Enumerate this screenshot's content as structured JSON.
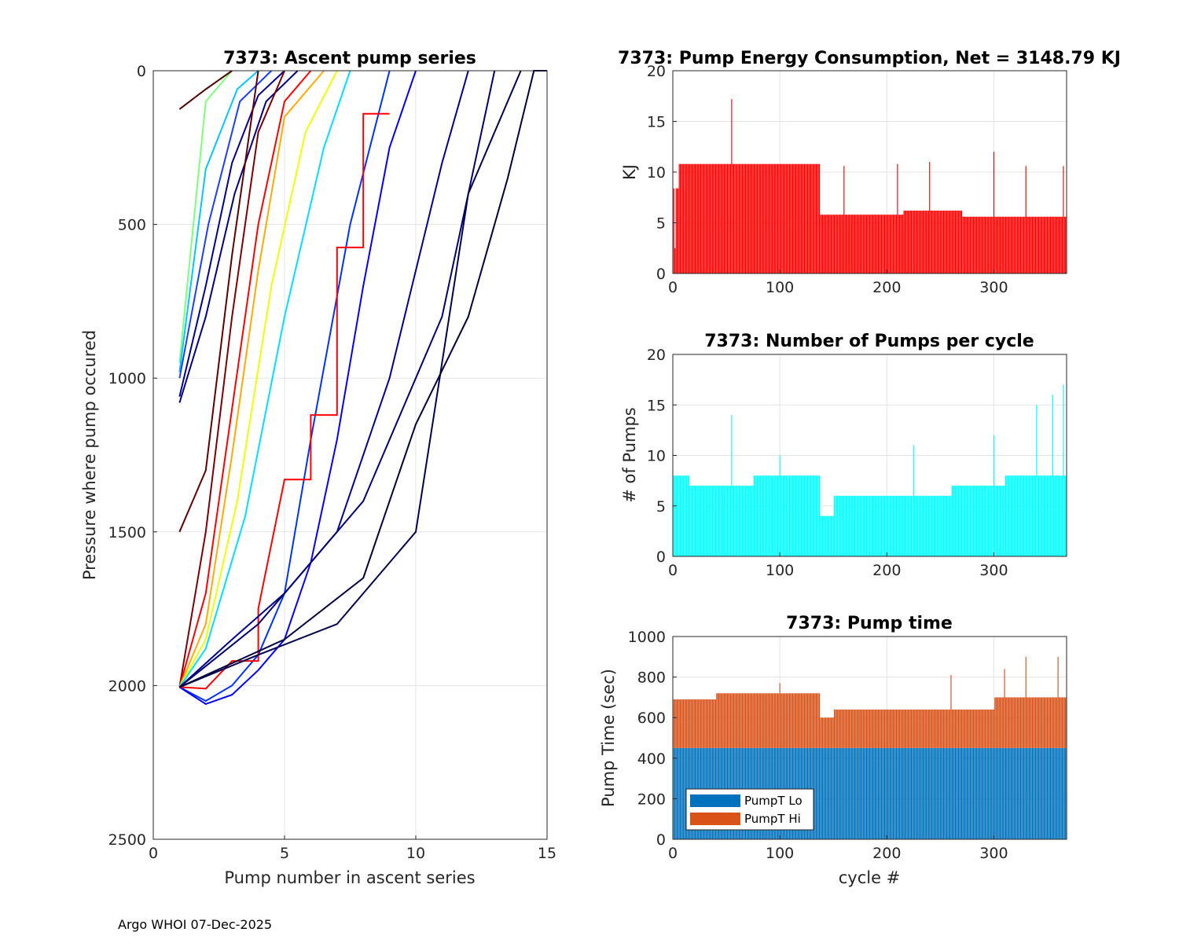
{
  "footer": "Argo WHOI 07-Dec-2025",
  "chart_data": [
    {
      "id": "ascent",
      "type": "line",
      "title": "7373: Ascent pump series",
      "xlabel": "Pump number in ascent series",
      "ylabel": "Pressure where pump occured",
      "xlim": [
        0,
        15
      ],
      "ylim": [
        0,
        2500
      ],
      "y_reversed": true,
      "xticks": [
        0,
        5,
        10,
        15
      ],
      "yticks": [
        0,
        500,
        1000,
        1500,
        2000,
        2500
      ],
      "grid": true,
      "colormap": "jet",
      "series": [
        {
          "name": "shallow-start-early",
          "color": "#7cff79",
          "x": [
            1,
            2,
            3
          ],
          "y": [
            950,
            100,
            0
          ]
        },
        {
          "name": "shallow-start-mid",
          "color": "#00c8ff",
          "x": [
            1,
            2,
            3.2,
            4
          ],
          "y": [
            980,
            320,
            60,
            0
          ]
        },
        {
          "name": "shallow-start-late",
          "color": "#1c3cff",
          "x": [
            1,
            2.1,
            3.3,
            4.5
          ],
          "y": [
            1000,
            500,
            100,
            0
          ]
        },
        {
          "name": "shallow-start-navy",
          "color": "#00008f",
          "x": [
            1,
            2,
            3,
            4,
            5
          ],
          "y": [
            1060,
            700,
            300,
            80,
            0
          ]
        },
        {
          "name": "shallow-start-dark",
          "color": "#000080",
          "x": [
            1,
            2,
            3.1,
            4.3,
            5.5
          ],
          "y": [
            1080,
            800,
            400,
            100,
            0
          ]
        },
        {
          "name": "top-start-darkred",
          "color": "#500000",
          "x": [
            1,
            2,
            3
          ],
          "y": [
            125,
            60,
            0
          ]
        },
        {
          "name": "mid-start-darkred",
          "color": "#600000",
          "x": [
            1,
            2,
            3,
            4
          ],
          "y": [
            1500,
            1300,
            600,
            0
          ]
        },
        {
          "name": "deep-darkred",
          "color": "#800000",
          "x": [
            1,
            2,
            3,
            4,
            5
          ],
          "y": [
            2005,
            1500,
            800,
            200,
            0
          ]
        },
        {
          "name": "deep-red",
          "color": "#ff0000",
          "x": [
            1,
            2,
            3,
            4,
            5,
            6
          ],
          "y": [
            2005,
            1700,
            1100,
            500,
            100,
            0
          ]
        },
        {
          "name": "deep-orange",
          "color": "#ffaa00",
          "x": [
            1,
            2,
            3,
            4,
            5,
            6.5
          ],
          "y": [
            2005,
            1800,
            1250,
            650,
            150,
            0
          ]
        },
        {
          "name": "deep-yellow",
          "color": "#eeff00",
          "x": [
            1,
            2,
            3.2,
            4.5,
            5.8,
            7
          ],
          "y": [
            2005,
            1850,
            1400,
            700,
            200,
            0
          ]
        },
        {
          "name": "deep-cyan",
          "color": "#00e0ff",
          "x": [
            1,
            2,
            3.5,
            5,
            6.5,
            7.5
          ],
          "y": [
            2005,
            1880,
            1450,
            800,
            250,
            0
          ]
        },
        {
          "name": "deep-blue-1",
          "color": "#0032ff",
          "x": [
            1,
            2,
            3,
            4,
            5,
            6,
            7.5,
            9
          ],
          "y": [
            2005,
            2050,
            2000,
            1900,
            1700,
            1200,
            500,
            0
          ]
        },
        {
          "name": "deep-blue-2",
          "color": "#0000ff",
          "x": [
            1,
            2,
            3,
            4,
            5,
            6,
            7,
            8,
            9,
            10
          ],
          "y": [
            2005,
            2060,
            2030,
            1950,
            1850,
            1600,
            1200,
            700,
            250,
            0
          ]
        },
        {
          "name": "red-step",
          "color": "#ff0000",
          "x": [
            1,
            2,
            3,
            4,
            4,
            5,
            6,
            6,
            7,
            7,
            8,
            8,
            9
          ],
          "y": [
            2005,
            2010,
            1920,
            1920,
            1750,
            1330,
            1330,
            1120,
            1120,
            575,
            575,
            140,
            140
          ]
        },
        {
          "name": "deep-navy-1",
          "color": "#000090",
          "x": [
            1,
            3,
            5,
            7,
            9,
            11,
            12
          ],
          "y": [
            2005,
            1850,
            1700,
            1500,
            1000,
            300,
            0
          ]
        },
        {
          "name": "deep-navy-2",
          "color": "#000070",
          "x": [
            1,
            4,
            6,
            8,
            10,
            11,
            13
          ],
          "y": [
            2005,
            1800,
            1600,
            1400,
            1000,
            800,
            0
          ]
        },
        {
          "name": "deep-navy-3",
          "color": "#000050",
          "x": [
            1,
            4,
            7,
            10,
            12,
            14
          ],
          "y": [
            2005,
            1900,
            1800,
            1500,
            400,
            0
          ]
        },
        {
          "name": "deep-navy-4",
          "color": "#00003f",
          "x": [
            1,
            5,
            8,
            10,
            12,
            13.5,
            14.5,
            15
          ],
          "y": [
            2005,
            1850,
            1650,
            1150,
            800,
            350,
            0,
            0
          ]
        }
      ]
    },
    {
      "id": "energy",
      "type": "bar",
      "title": "7373: Pump Energy Consumption,  Net = 3148.79 KJ",
      "xlabel": "",
      "ylabel": "KJ",
      "xlim": [
        0,
        368
      ],
      "ylim": [
        0,
        20
      ],
      "xticks": [
        0,
        100,
        200,
        300
      ],
      "yticks": [
        0,
        5,
        10,
        15,
        20
      ],
      "grid": true,
      "bar_color": "#ff0000",
      "segments": [
        {
          "from": 1,
          "to": 5,
          "value": 8.4
        },
        {
          "from": 6,
          "to": 137,
          "value": 10.8
        },
        {
          "from": 138,
          "to": 215,
          "value": 5.8
        },
        {
          "from": 216,
          "to": 270,
          "value": 6.2
        },
        {
          "from": 271,
          "to": 368,
          "value": 5.6
        }
      ],
      "spikes": [
        {
          "cycle": 2,
          "value": 2.5
        },
        {
          "cycle": 55,
          "value": 17.2
        },
        {
          "cycle": 160,
          "value": 10.6
        },
        {
          "cycle": 210,
          "value": 10.8
        },
        {
          "cycle": 240,
          "value": 11.0
        },
        {
          "cycle": 300,
          "value": 12.0
        },
        {
          "cycle": 330,
          "value": 10.6
        },
        {
          "cycle": 365,
          "value": 10.6
        }
      ]
    },
    {
      "id": "pumps",
      "type": "bar",
      "title": "7373: Number of Pumps per cycle",
      "xlabel": "",
      "ylabel": "# of Pumps",
      "xlim": [
        0,
        368
      ],
      "ylim": [
        0,
        20
      ],
      "xticks": [
        0,
        100,
        200,
        300
      ],
      "yticks": [
        0,
        5,
        10,
        15,
        20
      ],
      "grid": true,
      "bar_color": "#00ffff",
      "segments": [
        {
          "from": 1,
          "to": 15,
          "value": 8
        },
        {
          "from": 16,
          "to": 75,
          "value": 7
        },
        {
          "from": 76,
          "to": 137,
          "value": 8
        },
        {
          "from": 138,
          "to": 150,
          "value": 4
        },
        {
          "from": 151,
          "to": 260,
          "value": 6
        },
        {
          "from": 261,
          "to": 310,
          "value": 7
        },
        {
          "from": 311,
          "to": 368,
          "value": 8
        }
      ],
      "spikes": [
        {
          "cycle": 55,
          "value": 14
        },
        {
          "cycle": 100,
          "value": 10
        },
        {
          "cycle": 225,
          "value": 11
        },
        {
          "cycle": 300,
          "value": 12
        },
        {
          "cycle": 340,
          "value": 15
        },
        {
          "cycle": 355,
          "value": 16
        },
        {
          "cycle": 365,
          "value": 17
        }
      ]
    },
    {
      "id": "pumptime",
      "type": "bar",
      "stacked": true,
      "title": "7373: Pump time",
      "xlabel": "cycle #",
      "ylabel": "Pump Time (sec)",
      "xlim": [
        0,
        368
      ],
      "ylim": [
        0,
        1000
      ],
      "xticks": [
        0,
        100,
        200,
        300
      ],
      "yticks": [
        0,
        200,
        400,
        600,
        800,
        1000
      ],
      "grid": true,
      "legend": [
        "PumpT Lo",
        "PumpT Hi"
      ],
      "legend_position": "bottom-left",
      "series": [
        {
          "name": "PumpT Lo",
          "color": "#0072bd",
          "value": 450
        },
        {
          "name": "PumpT Hi",
          "color": "#d95319"
        }
      ],
      "total_segments": [
        {
          "from": 1,
          "to": 40,
          "value": 690
        },
        {
          "from": 41,
          "to": 137,
          "value": 720
        },
        {
          "from": 138,
          "to": 150,
          "value": 600
        },
        {
          "from": 151,
          "to": 300,
          "value": 640
        },
        {
          "from": 301,
          "to": 368,
          "value": 700
        }
      ],
      "total_spikes": [
        {
          "cycle": 100,
          "value": 770
        },
        {
          "cycle": 260,
          "value": 810
        },
        {
          "cycle": 310,
          "value": 840
        },
        {
          "cycle": 330,
          "value": 900
        },
        {
          "cycle": 360,
          "value": 900
        }
      ]
    }
  ]
}
